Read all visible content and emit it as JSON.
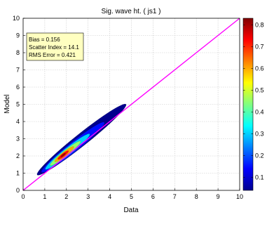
{
  "chart_data": {
    "type": "heatmap",
    "title": "Sig. wave ht. ( js1 )",
    "xlabel": "Data",
    "ylabel": "Model",
    "xlim": [
      0,
      10
    ],
    "ylim": [
      0,
      10
    ],
    "xticks": [
      "0",
      "1",
      "2",
      "3",
      "4",
      "5",
      "6",
      "7",
      "8",
      "9",
      "10"
    ],
    "yticks": [
      "0",
      "1",
      "2",
      "3",
      "4",
      "5",
      "6",
      "7",
      "8",
      "9",
      "10"
    ],
    "grid": true,
    "reference_line": {
      "from": [
        0,
        0
      ],
      "to": [
        10,
        10
      ],
      "color": "#ff00ff"
    },
    "stats": [
      "Bias = 0.156",
      "Scatter Index = 14.1",
      "RMS Error = 0.421"
    ],
    "density_contours": [
      {
        "level": 0.05,
        "center": [
          2.7,
          2.95
        ],
        "semi_major": 2.9,
        "semi_minor": 0.28
      },
      {
        "level": 0.15,
        "center": [
          2.3,
          2.5
        ],
        "semi_major": 2.05,
        "semi_minor": 0.22
      },
      {
        "level": 0.3,
        "center": [
          2.05,
          2.25
        ],
        "semi_major": 1.45,
        "semi_minor": 0.17
      },
      {
        "level": 0.45,
        "center": [
          1.95,
          2.15
        ],
        "semi_major": 1.0,
        "semi_minor": 0.13
      },
      {
        "level": 0.6,
        "center": [
          1.9,
          2.1
        ],
        "semi_major": 0.62,
        "semi_minor": 0.1
      },
      {
        "level": 0.72,
        "center": [
          1.85,
          2.05
        ],
        "semi_major": 0.35,
        "semi_minor": 0.07
      },
      {
        "level": 0.8,
        "center": [
          1.85,
          2.05
        ],
        "semi_major": 0.15,
        "semi_minor": 0.04
      }
    ],
    "colorbar": {
      "min": 0.04,
      "max": 0.83,
      "ticks": [
        0.1,
        0.2,
        0.3,
        0.4,
        0.5,
        0.6,
        0.7,
        0.8
      ],
      "colormap": "jet"
    }
  },
  "colors": {
    "reference_line": "#ff00ff",
    "stats_box_fill": "#ffffc0",
    "grid": "#c8c8c8"
  }
}
